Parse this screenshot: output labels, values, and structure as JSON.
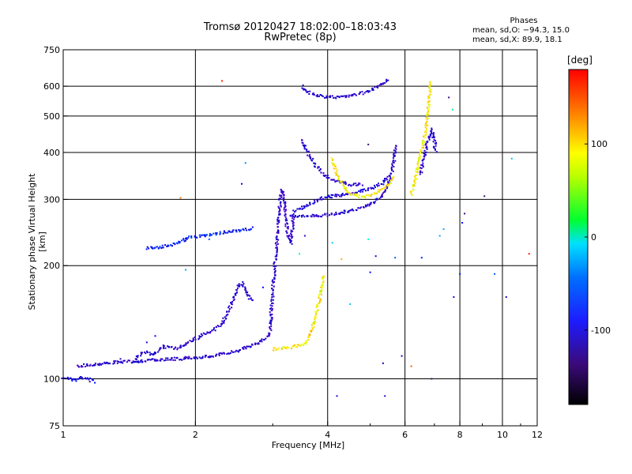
{
  "chart_data": {
    "type": "scatter",
    "title": "Tromsø 20120427 18:02:00–18:03:43",
    "subtitle": "RwPretec (8p)",
    "xlabel": "Frequency [MHz]",
    "ylabel": "Stationary phase Virtual Height [km]",
    "x_scale": "log",
    "y_scale": "log",
    "xlim": [
      1,
      12
    ],
    "ylim": [
      75,
      750
    ],
    "x_ticks": [
      "1",
      "2",
      "4",
      "6",
      "8",
      "10",
      "12"
    ],
    "y_ticks": [
      "75",
      "100",
      "200",
      "300",
      "400",
      "500",
      "600",
      "750"
    ],
    "grid": true,
    "phases_legend": {
      "title": "Phases",
      "line1": "mean, sd,O: −94.3, 15.0",
      "line2": "mean, sd,X:  89.9, 18.1"
    },
    "colorbar": {
      "label": "[deg]",
      "ticks": [
        "100",
        "0",
        "-100"
      ],
      "tick_values": [
        100,
        0,
        -100
      ],
      "range": [
        -180,
        180
      ]
    },
    "traces": [
      {
        "phase": -100,
        "points": [
          [
            1.0,
            101
          ],
          [
            1.03,
            100
          ],
          [
            1.07,
            99
          ],
          [
            1.1,
            101
          ],
          [
            1.14,
            100
          ],
          [
            1.18,
            98
          ]
        ]
      },
      {
        "phase": -110,
        "points": [
          [
            1.08,
            108
          ],
          [
            1.15,
            109
          ],
          [
            1.25,
            110
          ],
          [
            1.35,
            111
          ],
          [
            1.45,
            111
          ],
          [
            1.55,
            112
          ],
          [
            1.65,
            112
          ],
          [
            1.75,
            113
          ],
          [
            1.85,
            113
          ],
          [
            1.95,
            114
          ],
          [
            2.05,
            114
          ],
          [
            2.2,
            115
          ],
          [
            2.35,
            117
          ],
          [
            2.5,
            119
          ],
          [
            2.65,
            122
          ],
          [
            2.75,
            124
          ],
          [
            2.85,
            127
          ],
          [
            2.95,
            131
          ]
        ]
      },
      {
        "phase": -110,
        "points": [
          [
            1.45,
            112
          ],
          [
            1.5,
            116
          ],
          [
            1.55,
            118
          ],
          [
            1.6,
            116
          ],
          [
            1.7,
            122
          ],
          [
            1.8,
            120
          ],
          [
            2.2,
            135
          ],
          [
            2.3,
            140
          ],
          [
            2.35,
            148
          ],
          [
            2.4,
            155
          ],
          [
            2.45,
            165
          ],
          [
            2.5,
            175
          ],
          [
            2.55,
            180
          ],
          [
            2.6,
            172
          ],
          [
            2.65,
            165
          ],
          [
            2.7,
            160
          ]
        ]
      },
      {
        "phase": -80,
        "points": [
          [
            1.55,
            223
          ],
          [
            1.65,
            224
          ],
          [
            1.75,
            226
          ],
          [
            1.85,
            232
          ],
          [
            1.95,
            238
          ],
          [
            2.1,
            240
          ],
          [
            2.25,
            244
          ],
          [
            2.4,
            246
          ],
          [
            2.55,
            248
          ],
          [
            2.7,
            252
          ]
        ]
      },
      {
        "phase": -115,
        "points": [
          [
            2.95,
            130
          ],
          [
            2.97,
            145
          ],
          [
            2.99,
            160
          ],
          [
            3.0,
            175
          ],
          [
            3.02,
            190
          ],
          [
            3.04,
            205
          ],
          [
            3.06,
            225
          ],
          [
            3.08,
            250
          ],
          [
            3.1,
            275
          ],
          [
            3.12,
            300
          ],
          [
            3.15,
            320
          ],
          [
            3.18,
            300
          ],
          [
            3.2,
            280
          ],
          [
            3.22,
            260
          ],
          [
            3.25,
            240
          ],
          [
            3.3,
            230
          ],
          [
            3.35,
            280
          ]
        ]
      },
      {
        "phase": -110,
        "points": [
          [
            3.3,
            270
          ],
          [
            3.5,
            270
          ],
          [
            3.7,
            271
          ],
          [
            3.9,
            272
          ],
          [
            4.1,
            274
          ],
          [
            4.3,
            277
          ],
          [
            4.5,
            280
          ],
          [
            4.7,
            284
          ],
          [
            4.9,
            289
          ],
          [
            5.1,
            296
          ],
          [
            5.3,
            305
          ],
          [
            5.45,
            320
          ],
          [
            5.55,
            340
          ],
          [
            5.62,
            360
          ],
          [
            5.68,
            390
          ],
          [
            5.72,
            420
          ]
        ]
      },
      {
        "phase": -105,
        "points": [
          [
            3.4,
            280
          ],
          [
            3.7,
            295
          ],
          [
            4.0,
            305
          ],
          [
            4.3,
            308
          ],
          [
            4.6,
            312
          ],
          [
            4.9,
            318
          ],
          [
            5.2,
            326
          ],
          [
            5.4,
            335
          ],
          [
            5.55,
            350
          ]
        ]
      },
      {
        "phase": -110,
        "points": [
          [
            3.5,
            600
          ],
          [
            3.6,
            580
          ],
          [
            3.75,
            568
          ],
          [
            3.95,
            562
          ],
          [
            4.2,
            561
          ],
          [
            4.5,
            565
          ],
          [
            4.8,
            575
          ],
          [
            5.1,
            590
          ],
          [
            5.35,
            610
          ],
          [
            5.5,
            628
          ]
        ]
      },
      {
        "phase": -110,
        "points": [
          [
            3.5,
            430
          ],
          [
            3.6,
            400
          ],
          [
            3.75,
            370
          ],
          [
            3.9,
            350
          ],
          [
            4.05,
            340
          ],
          [
            4.25,
            335
          ],
          [
            4.4,
            330
          ],
          [
            4.6,
            328
          ],
          [
            4.8,
            330
          ]
        ]
      },
      {
        "phase": 100,
        "points": [
          [
            3.0,
            120
          ],
          [
            3.2,
            121
          ],
          [
            3.4,
            122
          ],
          [
            3.55,
            124
          ],
          [
            3.65,
            130
          ],
          [
            3.75,
            145
          ],
          [
            3.82,
            160
          ],
          [
            3.88,
            175
          ],
          [
            3.92,
            190
          ]
        ]
      },
      {
        "phase": 100,
        "points": [
          [
            4.1,
            385
          ],
          [
            4.2,
            350
          ],
          [
            4.35,
            325
          ],
          [
            4.5,
            312
          ],
          [
            4.7,
            306
          ],
          [
            4.9,
            305
          ],
          [
            5.1,
            310
          ],
          [
            5.3,
            318
          ],
          [
            5.5,
            330
          ],
          [
            5.65,
            345
          ]
        ]
      },
      {
        "phase": 100,
        "points": [
          [
            6.2,
            310
          ],
          [
            6.3,
            330
          ],
          [
            6.4,
            360
          ],
          [
            6.5,
            390
          ],
          [
            6.6,
            420
          ],
          [
            6.7,
            460
          ],
          [
            6.75,
            500
          ],
          [
            6.8,
            550
          ],
          [
            6.85,
            620
          ]
        ]
      },
      {
        "phase": -110,
        "points": [
          [
            6.5,
            350
          ],
          [
            6.6,
            380
          ],
          [
            6.7,
            410
          ],
          [
            6.8,
            440
          ],
          [
            6.9,
            460
          ],
          [
            7.0,
            430
          ],
          [
            7.05,
            400
          ]
        ]
      }
    ],
    "scattered_points": [
      [
        1.35,
        113,
        -120
      ],
      [
        1.55,
        125,
        -110
      ],
      [
        1.62,
        130,
        -90
      ],
      [
        1.9,
        195,
        -30
      ],
      [
        1.85,
        303,
        140
      ],
      [
        2.15,
        235,
        -60
      ],
      [
        2.3,
        620,
        170
      ],
      [
        2.55,
        330,
        -90
      ],
      [
        2.6,
        375,
        -40
      ],
      [
        2.85,
        175,
        -90
      ],
      [
        3.45,
        215,
        20
      ],
      [
        3.55,
        240,
        -120
      ],
      [
        4.1,
        230,
        -20
      ],
      [
        4.3,
        208,
        120
      ],
      [
        4.5,
        158,
        -20
      ],
      [
        4.95,
        235,
        10
      ],
      [
        5.15,
        212,
        -110
      ],
      [
        5.0,
        192,
        -90
      ],
      [
        5.4,
        90,
        -120
      ],
      [
        5.9,
        115,
        -110
      ],
      [
        6.2,
        108,
        150
      ],
      [
        6.55,
        210,
        -80
      ],
      [
        7.2,
        240,
        -30
      ],
      [
        7.35,
        250,
        -30
      ],
      [
        7.55,
        560,
        -150
      ],
      [
        7.7,
        520,
        20
      ],
      [
        7.75,
        165,
        -120
      ],
      [
        8.0,
        190,
        -80
      ],
      [
        8.1,
        260,
        -90
      ],
      [
        8.2,
        275,
        -150
      ],
      [
        9.1,
        306,
        -150
      ],
      [
        9.6,
        190,
        -60
      ],
      [
        10.2,
        165,
        -120
      ],
      [
        10.5,
        385,
        -20
      ],
      [
        11.5,
        215,
        170
      ],
      [
        4.2,
        90,
        -120
      ],
      [
        5.35,
        110,
        -100
      ],
      [
        4.95,
        420,
        -150
      ],
      [
        5.7,
        210,
        -60
      ],
      [
        6.9,
        100,
        -150
      ]
    ]
  }
}
